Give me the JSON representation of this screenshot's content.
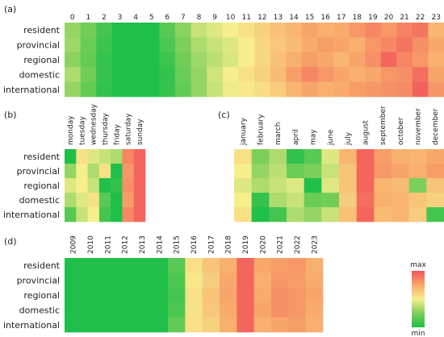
{
  "chart_data": [
    {
      "type": "heatmap",
      "panel_label": "(a)",
      "columns": [
        "0",
        "1",
        "2",
        "3",
        "4",
        "5",
        "6",
        "7",
        "8",
        "9",
        "10",
        "11",
        "12",
        "13",
        "14",
        "15",
        "16",
        "17",
        "18",
        "19",
        "20",
        "21",
        "22",
        "23"
      ],
      "rows": [
        "resident",
        "provincial",
        "regional",
        "domestic",
        "international"
      ],
      "values": [
        [
          0.3,
          0.22,
          0.1,
          0.0,
          0.0,
          0.0,
          0.15,
          0.28,
          0.4,
          0.45,
          0.5,
          0.55,
          0.6,
          0.66,
          0.7,
          0.76,
          0.72,
          0.74,
          0.8,
          0.85,
          0.8,
          0.86,
          0.9,
          0.7
        ],
        [
          0.32,
          0.2,
          0.08,
          0.0,
          0.0,
          0.0,
          0.12,
          0.25,
          0.35,
          0.4,
          0.45,
          0.5,
          0.58,
          0.64,
          0.68,
          0.74,
          0.78,
          0.76,
          0.72,
          0.8,
          0.85,
          0.9,
          0.82,
          0.75
        ],
        [
          0.28,
          0.18,
          0.06,
          0.0,
          0.0,
          0.0,
          0.08,
          0.22,
          0.32,
          0.38,
          0.44,
          0.5,
          0.58,
          0.66,
          0.72,
          0.78,
          0.75,
          0.7,
          0.76,
          0.82,
          0.95,
          0.85,
          0.8,
          0.72
        ],
        [
          0.35,
          0.22,
          0.06,
          0.0,
          0.0,
          0.0,
          0.05,
          0.2,
          0.3,
          0.42,
          0.5,
          0.55,
          0.6,
          0.68,
          0.78,
          0.85,
          0.8,
          0.76,
          0.72,
          0.75,
          0.8,
          0.82,
          0.92,
          0.76
        ],
        [
          0.3,
          0.18,
          0.05,
          0.0,
          0.0,
          0.0,
          0.06,
          0.18,
          0.3,
          0.4,
          0.48,
          0.52,
          0.56,
          0.62,
          0.7,
          0.76,
          0.72,
          0.74,
          0.78,
          0.8,
          0.82,
          0.84,
          0.96,
          0.8
        ]
      ]
    },
    {
      "type": "heatmap",
      "panel_label": "(b)",
      "columns": [
        "monday",
        "tuesday",
        "wednesday",
        "thursday",
        "friday",
        "saturday",
        "sunday"
      ],
      "rows": [
        "resident",
        "provincial",
        "regional",
        "domestic",
        "international"
      ],
      "values": [
        [
          0.0,
          0.55,
          0.45,
          0.4,
          0.35,
          0.85,
          0.95
        ],
        [
          0.3,
          0.5,
          0.35,
          0.55,
          0.0,
          0.8,
          0.95
        ],
        [
          0.45,
          0.5,
          0.4,
          0.0,
          0.05,
          0.82,
          0.95
        ],
        [
          0.35,
          0.45,
          0.55,
          0.15,
          0.0,
          0.78,
          0.95
        ],
        [
          0.15,
          0.4,
          0.5,
          0.1,
          0.0,
          0.85,
          0.95
        ]
      ]
    },
    {
      "type": "heatmap",
      "panel_label": "(c)",
      "columns": [
        "january",
        "february",
        "march",
        "april",
        "may",
        "june",
        "july",
        "august",
        "september",
        "october",
        "november",
        "december"
      ],
      "rows": [
        "resident",
        "provincial",
        "regional",
        "domestic",
        "international"
      ],
      "values": [
        [
          0.55,
          0.25,
          0.35,
          0.05,
          0.15,
          0.45,
          0.7,
          0.95,
          0.78,
          0.72,
          0.7,
          0.75
        ],
        [
          0.5,
          0.3,
          0.38,
          0.2,
          0.25,
          0.4,
          0.65,
          0.95,
          0.8,
          0.76,
          0.72,
          0.78
        ],
        [
          0.45,
          0.35,
          0.4,
          0.45,
          0.0,
          0.45,
          0.65,
          0.95,
          0.7,
          0.68,
          0.25,
          0.65
        ],
        [
          0.5,
          0.05,
          0.35,
          0.4,
          0.2,
          0.22,
          0.62,
          0.92,
          0.72,
          0.7,
          0.65,
          0.6
        ],
        [
          0.55,
          0.0,
          0.1,
          0.35,
          0.3,
          0.4,
          0.66,
          0.95,
          0.68,
          0.7,
          0.62,
          0.1
        ]
      ]
    },
    {
      "type": "heatmap",
      "panel_label": "(d)",
      "columns": [
        "2009",
        "2010",
        "2011",
        "2012",
        "2013",
        "2014",
        "2015",
        "2016",
        "2017",
        "2018",
        "2019",
        "2020",
        "2021",
        "2022",
        "2023"
      ],
      "rows": [
        "resident",
        "provincial",
        "regional",
        "domestic",
        "international"
      ],
      "values": [
        [
          0,
          0,
          0,
          0,
          0,
          0,
          0.15,
          0.55,
          0.65,
          0.72,
          0.95,
          0.75,
          0.78,
          0.8,
          0.72
        ],
        [
          0,
          0,
          0,
          0,
          0,
          0,
          0.12,
          0.52,
          0.62,
          0.75,
          0.95,
          0.72,
          0.8,
          0.78,
          0.74
        ],
        [
          0,
          0,
          0,
          0,
          0,
          0,
          0.1,
          0.55,
          0.65,
          0.76,
          0.95,
          0.74,
          0.82,
          0.8,
          0.76
        ],
        [
          0,
          0,
          0,
          0,
          0,
          0,
          0.12,
          0.54,
          0.64,
          0.74,
          0.95,
          0.76,
          0.82,
          0.8,
          0.74
        ],
        [
          0,
          0,
          0,
          0,
          0,
          0,
          0.18,
          0.55,
          0.6,
          0.72,
          0.95,
          0.72,
          0.76,
          0.78,
          0.72
        ]
      ]
    }
  ],
  "legend": {
    "max_label": "max",
    "min_label": "min",
    "colors": [
      "#1fbf4a",
      "#7ccf5a",
      "#f7ee8c",
      "#f8a86a",
      "#f2545a"
    ]
  }
}
